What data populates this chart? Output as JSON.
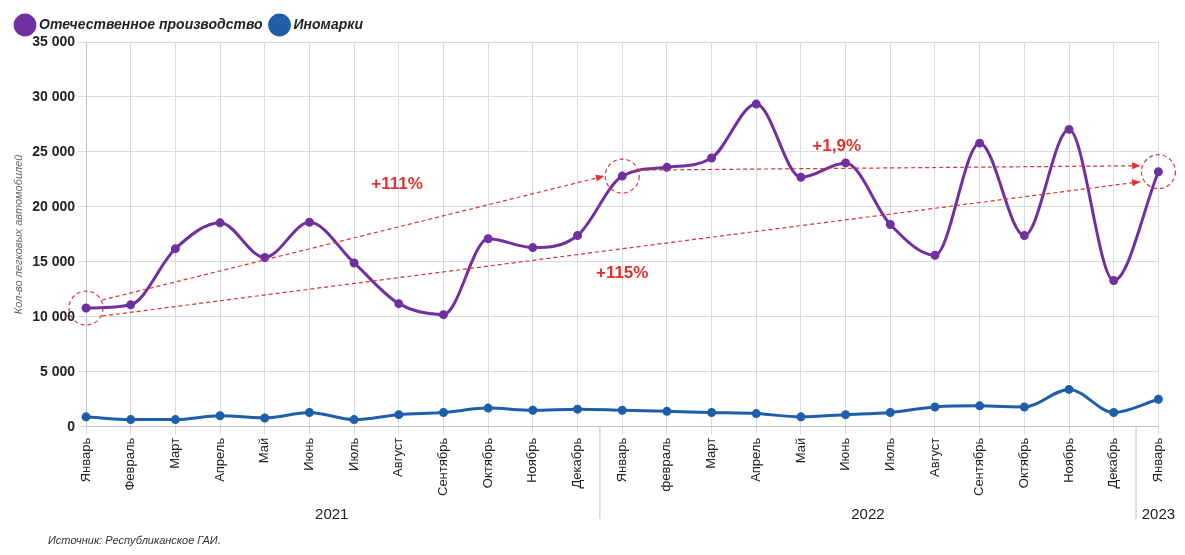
{
  "chart_data": {
    "type": "line",
    "ylabel": "Кол-во легковых автомобилей",
    "categories": [
      "Январь",
      "Февраль",
      "Март",
      "Апрель",
      "Май",
      "Июнь",
      "Июль",
      "Август",
      "Сентябрь",
      "Октябрь",
      "Ноябрь",
      "Декабрь",
      "Январь",
      "февраль",
      "Март",
      "Апрель",
      "Май",
      "Июнь",
      "Июль",
      "Август",
      "Сентябрь",
      "Октябрь",
      "Ноябрь",
      "Декабрь",
      "Январь"
    ],
    "series": [
      {
        "name": "Отечественное производство",
        "color": "#7030a0",
        "values": [
          10800,
          11100,
          16200,
          18550,
          15400,
          18600,
          14900,
          11200,
          10200,
          17100,
          16300,
          17400,
          22800,
          23600,
          24450,
          29350,
          22700,
          24000,
          18400,
          15600,
          25800,
          17400,
          27050,
          13300,
          23200
        ]
      },
      {
        "name": "Иномарки",
        "color": "#1f5ea8",
        "values": [
          900,
          650,
          650,
          1000,
          800,
          1300,
          650,
          1100,
          1300,
          1700,
          1500,
          1600,
          1500,
          1400,
          1300,
          1200,
          900,
          1100,
          1300,
          1800,
          1900,
          1800,
          3400,
          1300,
          2500
        ]
      }
    ],
    "ylim": [
      0,
      35000
    ],
    "yticks": [
      {
        "value": 0,
        "label": "0"
      },
      {
        "value": 5000,
        "label": "5 000"
      },
      {
        "value": 10000,
        "label": "10 000"
      },
      {
        "value": 15000,
        "label": "15 000"
      },
      {
        "value": 20000,
        "label": "20 000"
      },
      {
        "value": 25000,
        "label": "25 000"
      },
      {
        "value": 30000,
        "label": "30 000"
      },
      {
        "value": 35000,
        "label": "35 000"
      }
    ],
    "grid": true,
    "legend": "top left",
    "marker": "circle",
    "line_style": "solid",
    "annotations": [
      "+111%",
      "+115%",
      "+1,9%",
      "2021",
      "2022",
      "2023",
      "Источник: Республиканское ГАИ."
    ]
  }
}
